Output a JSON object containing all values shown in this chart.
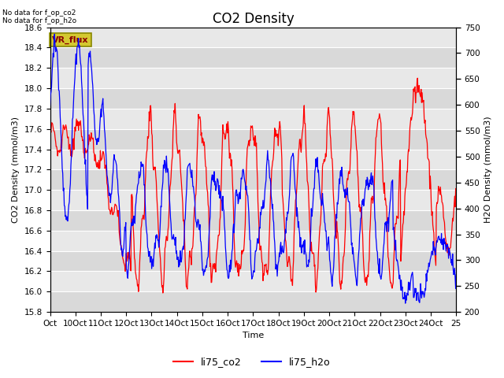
{
  "title": "CO2 Density",
  "ylabel_left": "CO2 Density (mmol/m3)",
  "ylabel_right": "H2O Density (mmol/m3)",
  "xlabel": "Time",
  "ylim_left": [
    15.8,
    18.6
  ],
  "ylim_right": [
    200,
    750
  ],
  "yticks_left": [
    15.8,
    16.0,
    16.2,
    16.4,
    16.6,
    16.8,
    17.0,
    17.2,
    17.4,
    17.6,
    17.8,
    18.0,
    18.2,
    18.4,
    18.6
  ],
  "yticks_right": [
    200,
    250,
    300,
    350,
    400,
    450,
    500,
    550,
    600,
    650,
    700,
    750
  ],
  "xtick_labels": [
    "Oct",
    "10Oct",
    "11Oct",
    "12Oct",
    "13Oct",
    "14Oct",
    "15Oct",
    "16Oct",
    "17Oct",
    "18Oct",
    "19Oct",
    "20Oct",
    "21Oct",
    "22Oct",
    "23Oct",
    "24Oct",
    "25"
  ],
  "nodata_text": "No data for f_op_co2\nNo data for f_op_h2o",
  "vr_flux_label": "VR_flux",
  "legend_labels": [
    "li75_co2",
    "li75_h2o"
  ],
  "line_colors_co2": "red",
  "line_colors_h2o": "blue",
  "plot_bg_color": "#e8e8e8",
  "stripe_color": "#d0d0d0",
  "title_fontsize": 12,
  "label_fontsize": 8,
  "tick_fontsize": 7.5
}
